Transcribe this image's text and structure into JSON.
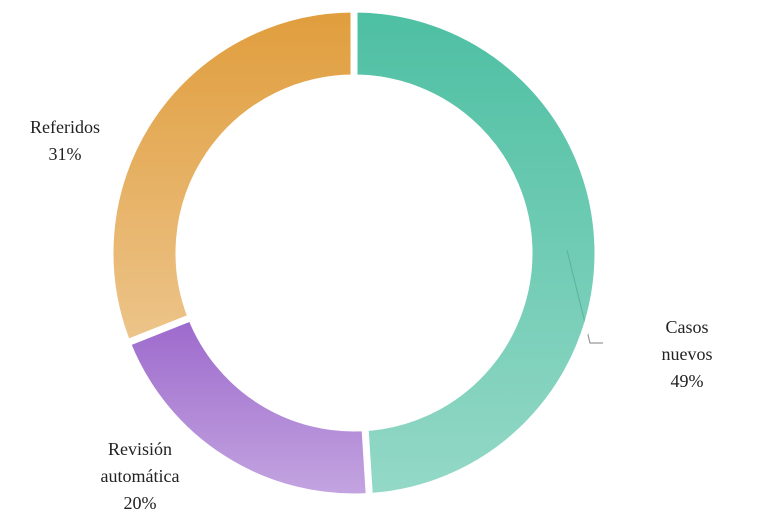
{
  "chart_data": {
    "type": "donut",
    "categories": [
      "Casos nuevos",
      "Revisión automática",
      "Referidos"
    ],
    "values": [
      49,
      20,
      31
    ],
    "value_labels": [
      "49%",
      "20%",
      "31%"
    ],
    "colors": [
      "#4dbfa2",
      "#9c69cc",
      "#e09d3c"
    ]
  }
}
